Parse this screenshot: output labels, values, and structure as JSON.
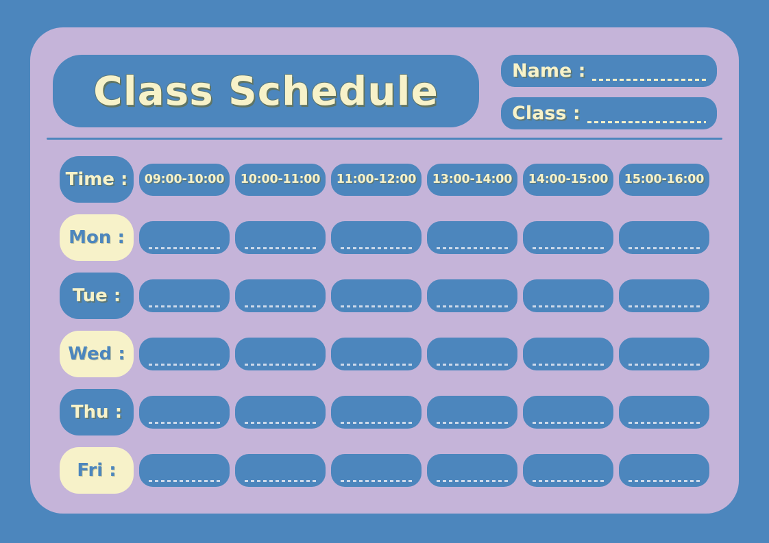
{
  "header": {
    "title": "Class Schedule",
    "fields": [
      {
        "label": "Name :"
      },
      {
        "label": "Class :"
      }
    ]
  },
  "schedule": {
    "time_label": "Time :",
    "time_slots": [
      "09:00-10:00",
      "10:00-11:00",
      "11:00-12:00",
      "13:00-14:00",
      "14:00-15:00",
      "15:00-16:00"
    ],
    "days": [
      {
        "label": "Mon :",
        "variant": "cream"
      },
      {
        "label": "Tue :",
        "variant": "blue"
      },
      {
        "label": "Wed :",
        "variant": "cream"
      },
      {
        "label": "Thu :",
        "variant": "blue"
      },
      {
        "label": "Fri :",
        "variant": "cream"
      }
    ]
  },
  "colors": {
    "background_blue": "#4C86BD",
    "card_purple": "#C5B4D9",
    "cream": "#F7F2C9",
    "title_shadow_olive": "#686E42",
    "cell_dash": "#E4E9F0"
  }
}
